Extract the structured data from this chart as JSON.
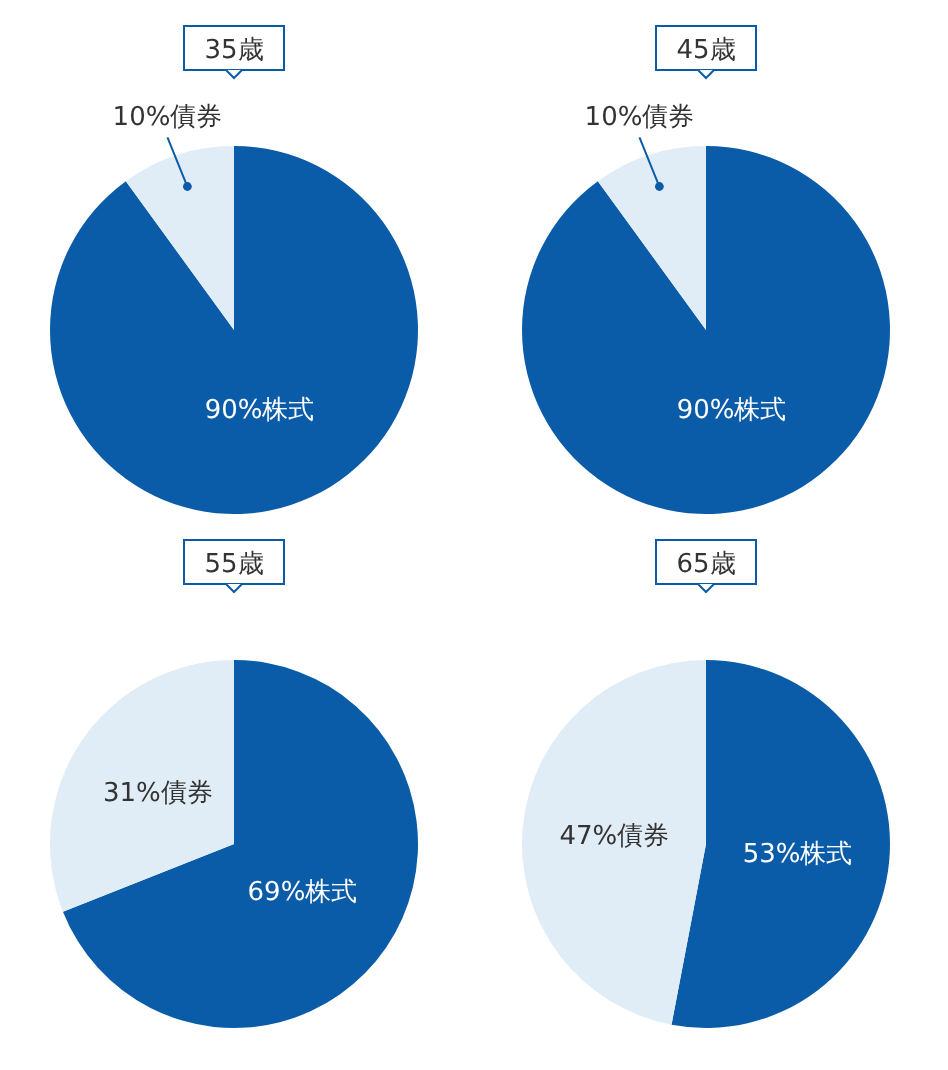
{
  "chart_data": [
    {
      "type": "pie",
      "title": "35歳",
      "categories": [
        "株式",
        "債券"
      ],
      "values": [
        90,
        10
      ],
      "colors": [
        "#0b5ca8",
        "#e1edf6"
      ],
      "value_labels": [
        "90%",
        "10%"
      ]
    },
    {
      "type": "pie",
      "title": "45歳",
      "categories": [
        "株式",
        "債券"
      ],
      "values": [
        90,
        10
      ],
      "colors": [
        "#0b5ca8",
        "#e1edf6"
      ],
      "value_labels": [
        "90%",
        "10%"
      ]
    },
    {
      "type": "pie",
      "title": "55歳",
      "categories": [
        "株式",
        "債券"
      ],
      "values": [
        69,
        31
      ],
      "colors": [
        "#0b5ca8",
        "#e1edf6"
      ],
      "value_labels": [
        "69%",
        "31%"
      ]
    },
    {
      "type": "pie",
      "title": "65歳",
      "categories": [
        "株式",
        "債券"
      ],
      "values": [
        53,
        47
      ],
      "colors": [
        "#0b5ca8",
        "#e1edf6"
      ],
      "value_labels": [
        "53%",
        "47%"
      ]
    }
  ]
}
